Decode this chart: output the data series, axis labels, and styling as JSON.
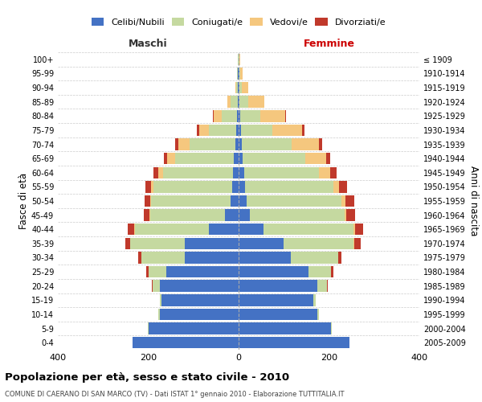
{
  "age_groups": [
    "0-4",
    "5-9",
    "10-14",
    "15-19",
    "20-24",
    "25-29",
    "30-34",
    "35-39",
    "40-44",
    "45-49",
    "50-54",
    "55-59",
    "60-64",
    "65-69",
    "70-74",
    "75-79",
    "80-84",
    "85-89",
    "90-94",
    "95-99",
    "100+"
  ],
  "birth_years": [
    "2005-2009",
    "2000-2004",
    "1995-1999",
    "1990-1994",
    "1985-1989",
    "1980-1984",
    "1975-1979",
    "1970-1974",
    "1965-1969",
    "1960-1964",
    "1955-1959",
    "1950-1954",
    "1945-1949",
    "1940-1944",
    "1935-1939",
    "1930-1934",
    "1925-1929",
    "1920-1924",
    "1915-1919",
    "1910-1914",
    "≤ 1909"
  ],
  "male_celibi": [
    235,
    200,
    175,
    170,
    175,
    160,
    120,
    120,
    65,
    30,
    18,
    14,
    12,
    10,
    8,
    5,
    3,
    2,
    1,
    1,
    0
  ],
  "male_coniugati": [
    0,
    1,
    2,
    5,
    15,
    40,
    95,
    120,
    165,
    165,
    175,
    175,
    155,
    130,
    100,
    60,
    35,
    15,
    4,
    2,
    1
  ],
  "male_vedovi": [
    0,
    0,
    0,
    0,
    0,
    0,
    0,
    0,
    1,
    2,
    3,
    5,
    10,
    18,
    25,
    22,
    18,
    8,
    3,
    1,
    0
  ],
  "male_divorziati": [
    0,
    0,
    0,
    0,
    2,
    5,
    8,
    10,
    15,
    12,
    12,
    12,
    12,
    8,
    8,
    5,
    1,
    0,
    0,
    0,
    0
  ],
  "female_celibi": [
    245,
    205,
    175,
    165,
    175,
    155,
    115,
    100,
    55,
    25,
    18,
    15,
    12,
    8,
    7,
    5,
    3,
    2,
    1,
    1,
    0
  ],
  "female_coniugati": [
    0,
    1,
    2,
    5,
    20,
    50,
    105,
    155,
    200,
    210,
    210,
    195,
    165,
    140,
    110,
    70,
    45,
    20,
    6,
    2,
    1
  ],
  "female_vedovi": [
    0,
    0,
    0,
    0,
    0,
    0,
    0,
    1,
    2,
    4,
    8,
    12,
    25,
    45,
    60,
    65,
    55,
    35,
    15,
    6,
    2
  ],
  "female_divorziati": [
    0,
    0,
    0,
    0,
    2,
    4,
    8,
    14,
    18,
    18,
    20,
    18,
    14,
    10,
    8,
    5,
    2,
    0,
    0,
    0,
    0
  ],
  "color_celibi": "#4472c4",
  "color_coniugati": "#c5d9a0",
  "color_vedovi": "#f5c77e",
  "color_divorziati": "#c0392b",
  "xlim": 400,
  "title": "Popolazione per età, sesso e stato civile - 2010",
  "subtitle": "COMUNE DI CAERANO DI SAN MARCO (TV) - Dati ISTAT 1° gennaio 2010 - Elaborazione TUTTITALIA.IT",
  "ylabel_left": "Fasce di età",
  "ylabel_right": "Anni di nascita",
  "label_maschi": "Maschi",
  "label_femmine": "Femmine",
  "legend_celibi": "Celibi/Nubili",
  "legend_coniugati": "Coniugati/e",
  "legend_vedovi": "Vedovi/e",
  "legend_divorziati": "Divorziati/e"
}
